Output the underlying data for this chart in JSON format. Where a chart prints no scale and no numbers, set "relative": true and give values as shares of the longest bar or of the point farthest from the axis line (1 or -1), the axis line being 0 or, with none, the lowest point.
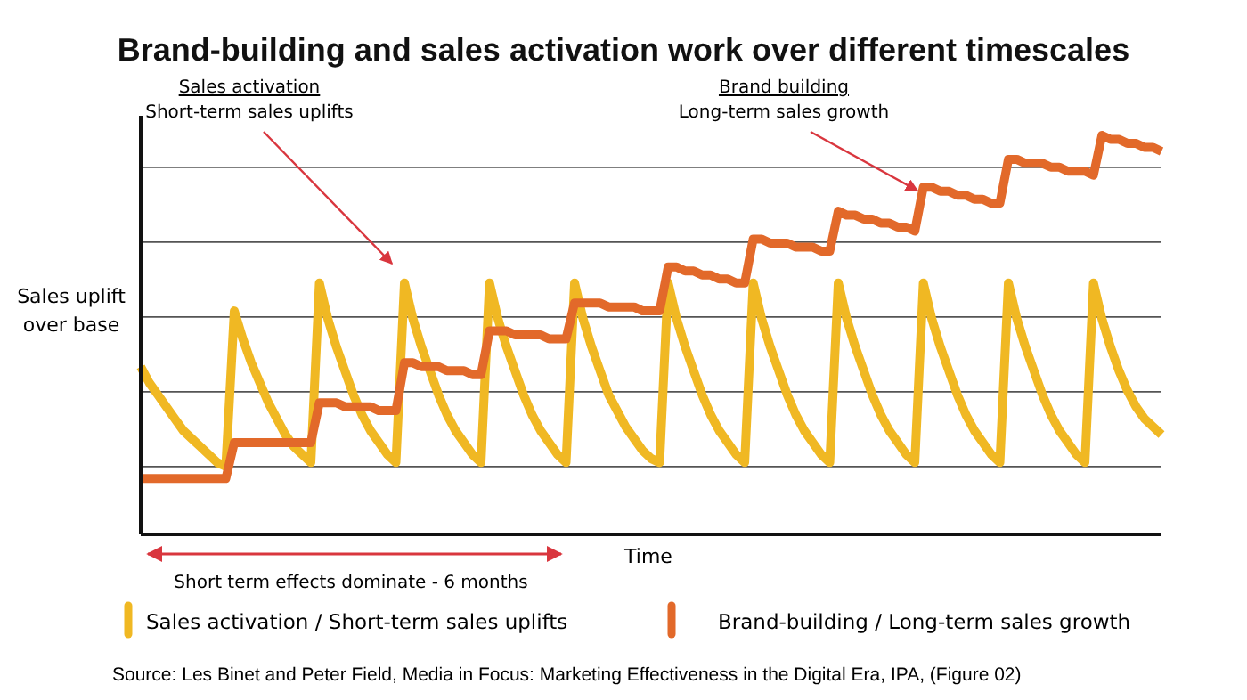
{
  "chart_data": {
    "type": "line",
    "title": "Brand-building and sales activation work over different timescales",
    "xlabel": "Time",
    "ylabel": "Sales uplift over base",
    "relative": true,
    "grid": "y",
    "legend": "bottom",
    "marker": "none",
    "line_style": "solid",
    "categories": [
      null,
      null,
      null,
      null,
      null,
      null,
      null,
      null,
      null,
      null,
      null,
      null,
      null,
      null,
      null,
      null,
      null,
      null,
      null,
      null,
      null,
      null,
      null,
      null,
      null,
      null,
      null,
      null,
      null,
      null,
      null,
      null,
      null,
      null,
      null,
      null,
      null,
      null,
      null,
      null,
      null,
      null,
      null,
      null,
      null,
      null,
      null,
      null,
      null,
      null,
      null,
      null,
      null,
      null,
      null,
      null,
      null,
      null,
      null,
      null,
      null,
      null,
      null,
      null,
      null,
      null,
      null,
      null,
      null,
      null,
      null,
      null,
      null,
      null,
      null,
      null,
      null,
      null,
      null,
      null,
      null,
      null,
      null,
      null,
      null,
      null,
      null,
      null,
      null,
      null,
      null,
      null,
      null,
      null,
      null,
      null,
      null,
      null,
      null,
      null,
      null,
      null,
      null,
      null,
      null,
      null,
      null,
      null,
      null,
      null,
      null,
      null,
      null,
      null,
      null,
      null,
      null,
      null,
      null,
      null,
      null
    ],
    "series": [
      {
        "name": "Sales activation / Short-term sales uplifts",
        "color": "#f0b823",
        "values": [
          0.42,
          0.38,
          0.35,
          0.32,
          0.29,
          0.26,
          0.24,
          0.22,
          0.2,
          0.18,
          0.17,
          0.56,
          0.49,
          0.43,
          0.38,
          0.33,
          0.29,
          0.25,
          0.22,
          0.2,
          0.18,
          0.63,
          0.54,
          0.47,
          0.41,
          0.35,
          0.3,
          0.26,
          0.23,
          0.2,
          0.18,
          0.63,
          0.54,
          0.47,
          0.41,
          0.35,
          0.3,
          0.26,
          0.23,
          0.2,
          0.18,
          0.63,
          0.54,
          0.47,
          0.41,
          0.35,
          0.3,
          0.26,
          0.23,
          0.2,
          0.18,
          0.63,
          0.54,
          0.47,
          0.41,
          0.35,
          0.31,
          0.27,
          0.24,
          0.21,
          0.19,
          0.18,
          0.63,
          0.54,
          0.47,
          0.41,
          0.35,
          0.3,
          0.26,
          0.23,
          0.2,
          0.18,
          0.63,
          0.54,
          0.47,
          0.41,
          0.35,
          0.3,
          0.26,
          0.23,
          0.2,
          0.18,
          0.63,
          0.54,
          0.47,
          0.41,
          0.35,
          0.3,
          0.26,
          0.23,
          0.2,
          0.18,
          0.63,
          0.54,
          0.47,
          0.41,
          0.35,
          0.3,
          0.26,
          0.23,
          0.2,
          0.18,
          0.63,
          0.54,
          0.47,
          0.41,
          0.35,
          0.3,
          0.26,
          0.23,
          0.2,
          0.18,
          0.63,
          0.54,
          0.47,
          0.41,
          0.36,
          0.32,
          0.29,
          0.27,
          0.25
        ]
      },
      {
        "name": "Brand-building / Long-term sales growth",
        "color": "#e2692a",
        "values": [
          0.14,
          0.14,
          0.14,
          0.14,
          0.14,
          0.14,
          0.14,
          0.14,
          0.14,
          0.14,
          0.14,
          0.23,
          0.23,
          0.23,
          0.23,
          0.23,
          0.23,
          0.23,
          0.23,
          0.23,
          0.23,
          0.33,
          0.33,
          0.33,
          0.32,
          0.32,
          0.32,
          0.32,
          0.31,
          0.31,
          0.31,
          0.43,
          0.43,
          0.42,
          0.42,
          0.42,
          0.41,
          0.41,
          0.41,
          0.4,
          0.4,
          0.51,
          0.51,
          0.51,
          0.5,
          0.5,
          0.5,
          0.5,
          0.49,
          0.49,
          0.49,
          0.58,
          0.58,
          0.58,
          0.58,
          0.57,
          0.57,
          0.57,
          0.57,
          0.56,
          0.56,
          0.56,
          0.67,
          0.67,
          0.66,
          0.66,
          0.65,
          0.65,
          0.64,
          0.64,
          0.63,
          0.63,
          0.74,
          0.74,
          0.73,
          0.73,
          0.73,
          0.72,
          0.72,
          0.72,
          0.71,
          0.71,
          0.81,
          0.8,
          0.8,
          0.79,
          0.79,
          0.78,
          0.78,
          0.77,
          0.77,
          0.76,
          0.87,
          0.87,
          0.86,
          0.86,
          0.85,
          0.85,
          0.84,
          0.84,
          0.83,
          0.83,
          0.94,
          0.94,
          0.93,
          0.93,
          0.93,
          0.92,
          0.92,
          0.91,
          0.91,
          0.91,
          0.9,
          1,
          0.99,
          0.99,
          0.98,
          0.98,
          0.97,
          0.97,
          0.96
        ]
      }
    ],
    "annotations": [
      "Sales activation\nShort-term sales uplifts",
      "Brand building\nLong-term sales growth",
      "Short term effects dominate - 6 months",
      "Source: Les Binet and Peter Field, Media in Focus: Marketing Effectiveness in the Digital Era, IPA, (Figure 02)"
    ]
  }
}
